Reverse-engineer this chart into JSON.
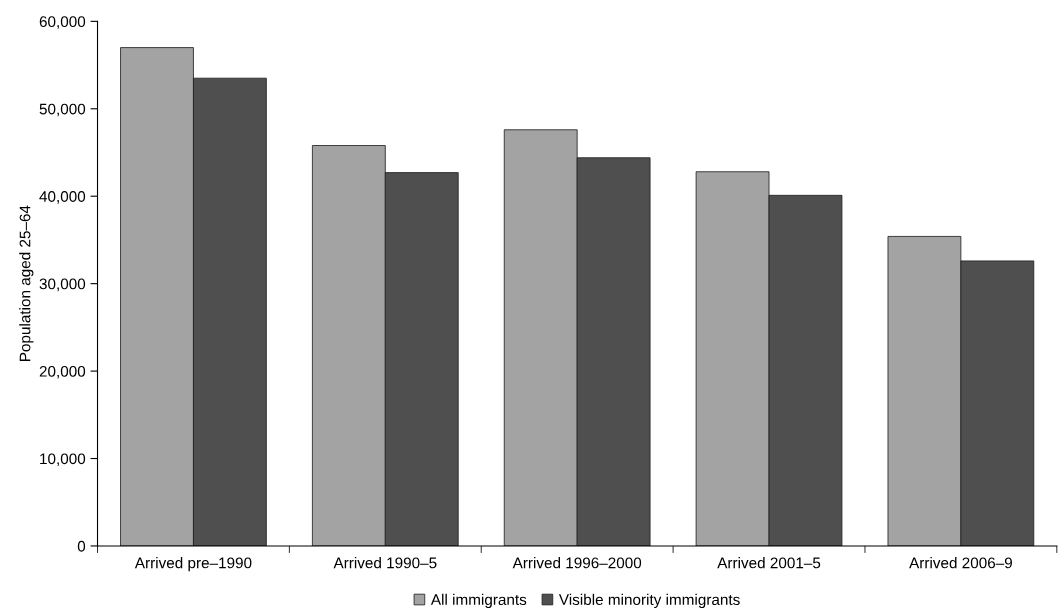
{
  "chart_data": {
    "type": "bar",
    "ylabel": "Population aged 25–64",
    "categories": [
      "Arrived pre–1990",
      "Arrived 1990–5",
      "Arrived 1996–2000",
      "Arrived 2001–5",
      "Arrived 2006–9"
    ],
    "series": [
      {
        "name": "All immigrants",
        "color": "#a3a3a3",
        "values": [
          57000,
          45800,
          47600,
          42800,
          35400
        ]
      },
      {
        "name": "Visible minority immigrants",
        "color": "#4f4f4f",
        "values": [
          53500,
          42700,
          44400,
          40100,
          32600
        ]
      }
    ],
    "ylim": [
      0,
      60000
    ],
    "yticks": [
      {
        "value": 0,
        "label": "0"
      },
      {
        "value": 10000,
        "label": "10,000"
      },
      {
        "value": 20000,
        "label": "20,000"
      },
      {
        "value": 30000,
        "label": "30,000"
      },
      {
        "value": 40000,
        "label": "40,000"
      },
      {
        "value": 50000,
        "label": "50,000"
      },
      {
        "value": 60000,
        "label": "60,000"
      }
    ],
    "grid": false,
    "legend": "bottom"
  }
}
